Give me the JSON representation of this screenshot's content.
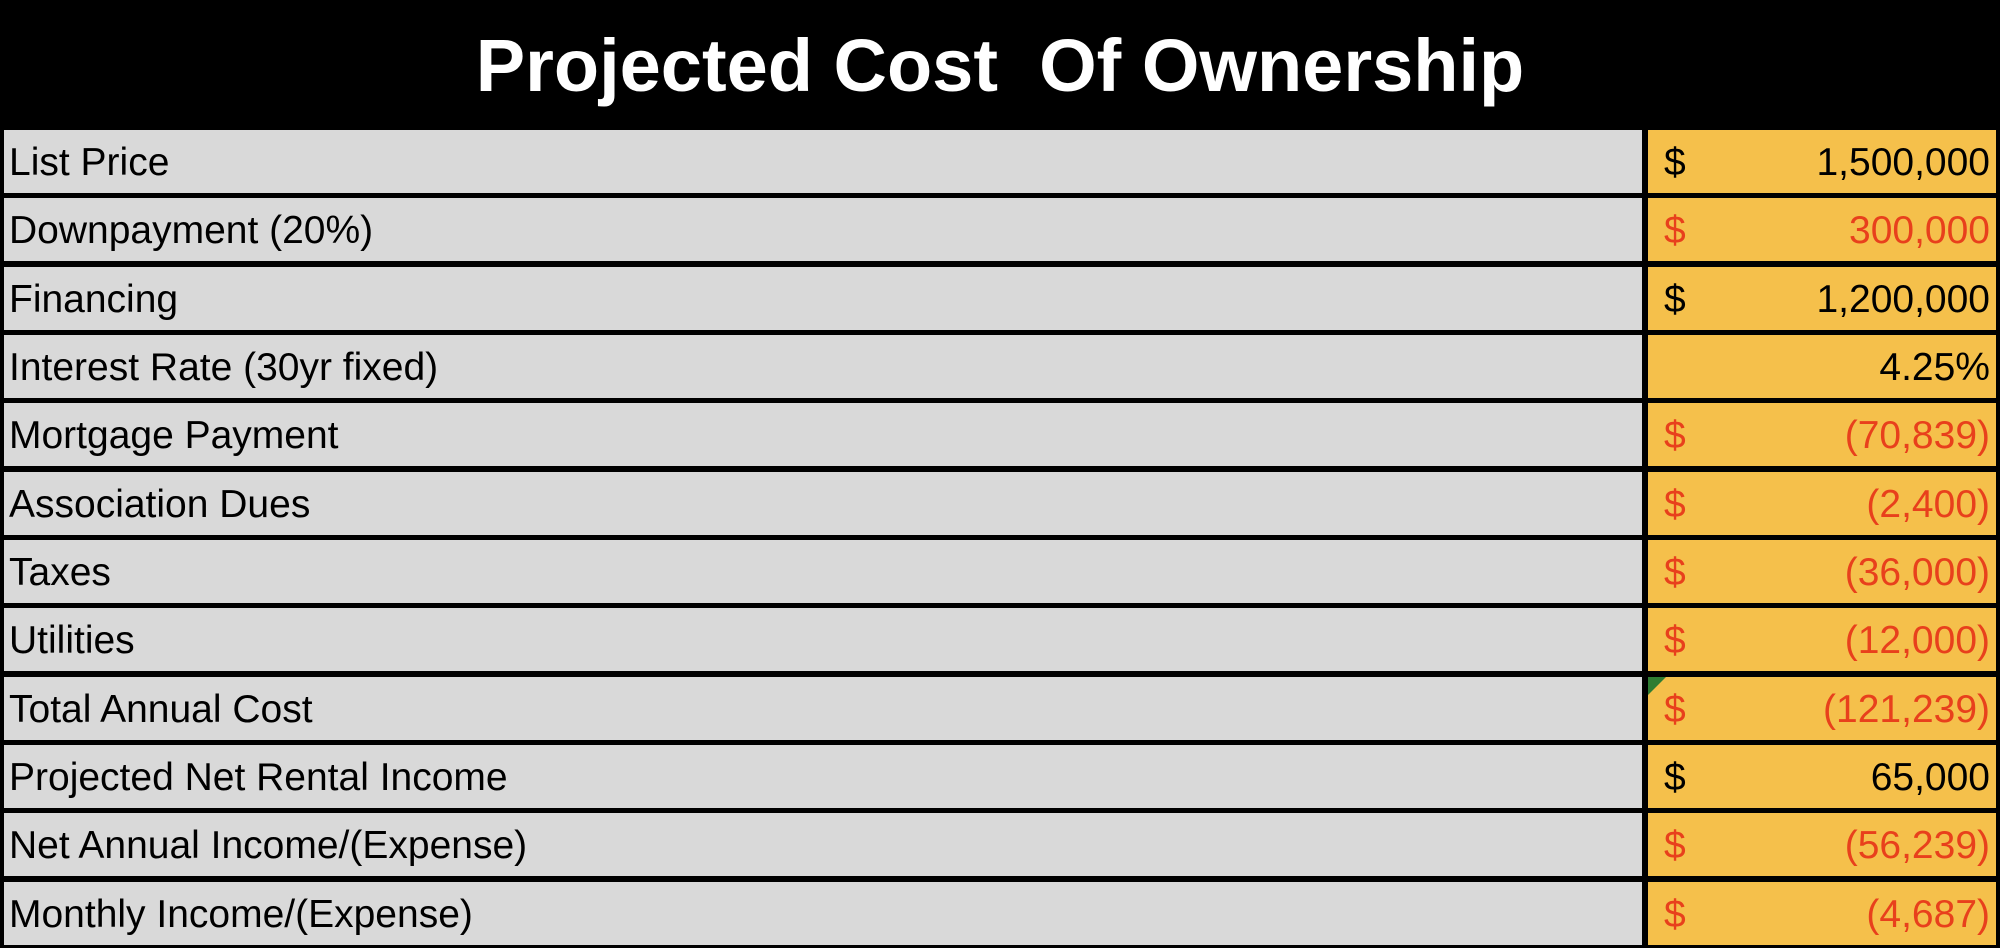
{
  "header": {
    "title": "Projected Cost  Of Ownership"
  },
  "table": {
    "rows": [
      {
        "label": "List Price",
        "currency": "$",
        "value": "1,500,000",
        "color": "#000000"
      },
      {
        "label": "Downpayment (20%)",
        "currency": "$",
        "value": "300,000",
        "color": "#e8401c"
      },
      {
        "label": "Financing",
        "currency": "$",
        "value": "1,200,000",
        "color": "#000000"
      },
      {
        "label": "Interest Rate (30yr fixed)",
        "value": "4.25%",
        "color": "#000000"
      },
      {
        "label": "Mortgage Payment",
        "currency": "$",
        "value": "(70,839)",
        "color": "#e8401c"
      },
      {
        "label": "Association Dues",
        "currency": "$",
        "value": "(2,400)",
        "color": "#e8401c"
      },
      {
        "label": "Taxes",
        "currency": "$",
        "value": "(36,000)",
        "color": "#e8401c"
      },
      {
        "label": "Utilities",
        "currency": "$",
        "value": "(12,000)",
        "color": "#e8401c"
      },
      {
        "label": "Total Annual Cost",
        "currency": "$",
        "value": "(121,239)",
        "color": "#e8401c"
      },
      {
        "label": "Projected Net Rental Income",
        "currency": "$",
        "value": "65,000",
        "color": "#000000"
      },
      {
        "label": "Net Annual Income/(Expense)",
        "currency": "$",
        "value": "(56,239)",
        "color": "#e8401c"
      },
      {
        "label": "Monthly Income/(Expense)",
        "currency": "$",
        "value": "(4,687)",
        "color": "#e8401c"
      }
    ]
  }
}
